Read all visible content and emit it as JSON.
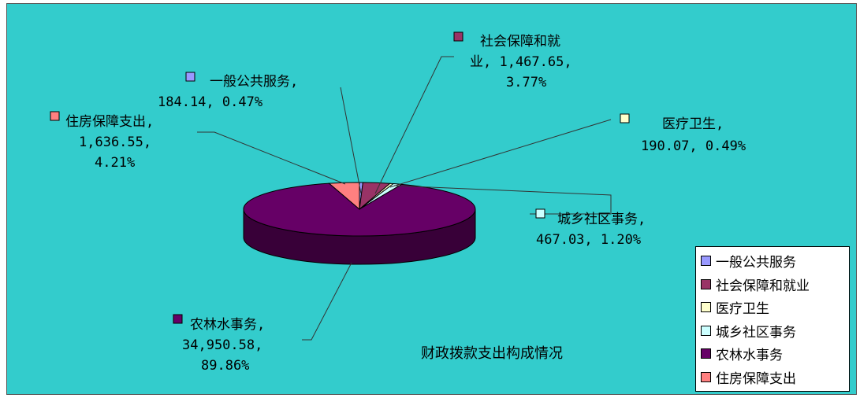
{
  "chart_data": {
    "type": "pie",
    "title": "财政拨款支出构成情况",
    "slices": [
      {
        "name": "一般公共服务",
        "value": 184.14,
        "percent": "0.47%",
        "value_text": "184.14",
        "color": "#9999FF"
      },
      {
        "name": "社会保障和就业",
        "value": 1467.65,
        "percent": "3.77%",
        "value_text": "1,467.65",
        "color": "#993366"
      },
      {
        "name": "医疗卫生",
        "value": 190.07,
        "percent": "0.49%",
        "value_text": "190.07",
        "color": "#FFFFCC"
      },
      {
        "name": "城乡社区事务",
        "value": 467.03,
        "percent": "1.20%",
        "value_text": "467.03",
        "color": "#CCFFFF"
      },
      {
        "name": "农林水事务",
        "value": 34950.58,
        "percent": "89.86%",
        "value_text": "34,950.58",
        "color": "#660066"
      },
      {
        "name": "住房保障支出",
        "value": 1636.55,
        "percent": "4.21%",
        "value_text": "1,636.55",
        "color": "#FF8080"
      }
    ],
    "legend_position": "bottom-right",
    "three_d": true
  },
  "colors": {
    "background": "#33CCCC"
  }
}
